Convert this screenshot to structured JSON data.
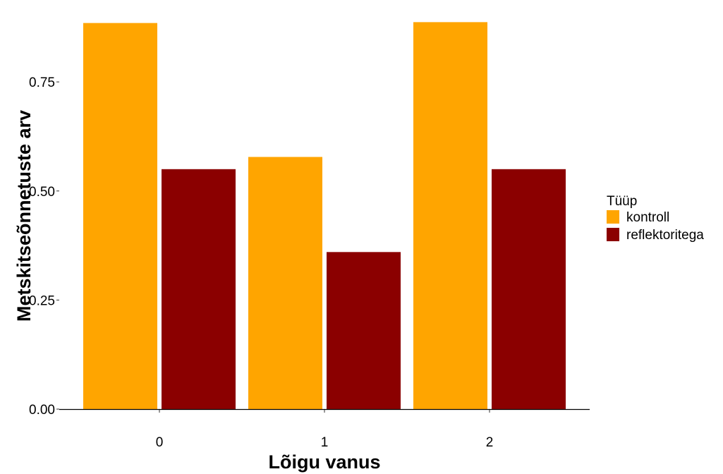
{
  "chart_data": {
    "type": "bar",
    "categories": [
      "0",
      "1",
      "2"
    ],
    "series": [
      {
        "name": "kontroll",
        "color": "#FFA500",
        "values": [
          0.885,
          0.578,
          0.887
        ]
      },
      {
        "name": "reflektoritega",
        "color": "#8B0000",
        "values": [
          0.55,
          0.36,
          0.55
        ]
      }
    ],
    "title": "",
    "xlabel": "Lõigu vanus",
    "ylabel": "Metskitseõnnetuste arv",
    "ylim": [
      0,
      0.92
    ],
    "yticks": [
      0,
      0.25,
      0.5,
      0.75
    ],
    "ytick_labels": [
      "0.00",
      "0.25",
      "0.50",
      "0.75"
    ],
    "grid": false,
    "legend": {
      "title": "Tüüp",
      "placement": "right"
    }
  }
}
